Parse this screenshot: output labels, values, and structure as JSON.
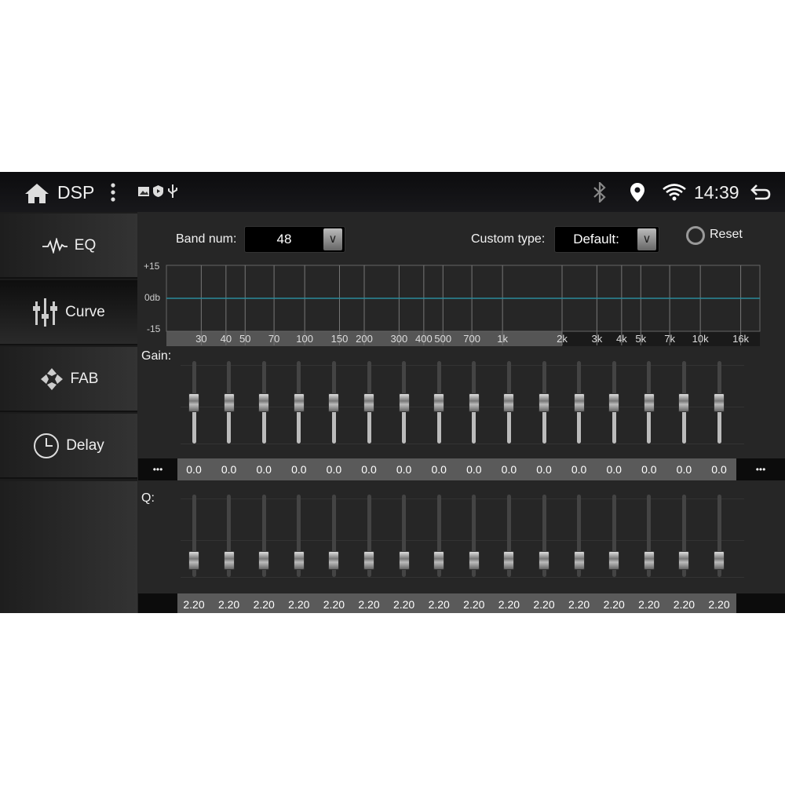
{
  "status": {
    "title": "DSP",
    "time": "14:39",
    "icons": [
      "home-icon",
      "more-vert-icon",
      "image-icon",
      "shield-play-icon",
      "usb-icon",
      "bluetooth-icon",
      "location-icon",
      "wifi-icon",
      "back-icon"
    ]
  },
  "sidebar": {
    "items": [
      {
        "label": "EQ",
        "icon": "waveform-icon"
      },
      {
        "label": "Curve",
        "icon": "sliders-icon",
        "selected": true
      },
      {
        "label": "FAB",
        "icon": "fader-balance-icon"
      },
      {
        "label": "Delay",
        "icon": "clock-icon"
      }
    ]
  },
  "controls": {
    "band_label": "Band num:",
    "band_value": "48",
    "custom_label": "Custom type:",
    "custom_value": "Default:",
    "reset_label": "Reset"
  },
  "chart_data": {
    "type": "line",
    "ylim": [
      -15,
      15
    ],
    "y_ticks": [
      "+15",
      "0db",
      "-15"
    ],
    "x_ticks": [
      "30",
      "40",
      "50",
      "70",
      "100",
      "150",
      "200",
      "300",
      "400",
      "500",
      "700",
      "1k",
      "2k",
      "3k",
      "4k",
      "5k",
      "7k",
      "10k",
      "16k"
    ],
    "values_db": [
      0,
      0,
      0,
      0,
      0,
      0,
      0,
      0,
      0,
      0,
      0,
      0,
      0,
      0,
      0,
      0,
      0,
      0,
      0
    ],
    "line_color": "#2a8a9a"
  },
  "gain": {
    "label": "Gain:",
    "more": "•••",
    "range": [
      -15,
      15
    ],
    "values": [
      "0.0",
      "0.0",
      "0.0",
      "0.0",
      "0.0",
      "0.0",
      "0.0",
      "0.0",
      "0.0",
      "0.0",
      "0.0",
      "0.0",
      "0.0",
      "0.0",
      "0.0",
      "0.0"
    ]
  },
  "q": {
    "label": "Q:",
    "level_fraction": 0.8,
    "values": [
      "2.20",
      "2.20",
      "2.20",
      "2.20",
      "2.20",
      "2.20",
      "2.20",
      "2.20",
      "2.20",
      "2.20",
      "2.20",
      "2.20",
      "2.20",
      "2.20",
      "2.20",
      "2.20"
    ]
  }
}
